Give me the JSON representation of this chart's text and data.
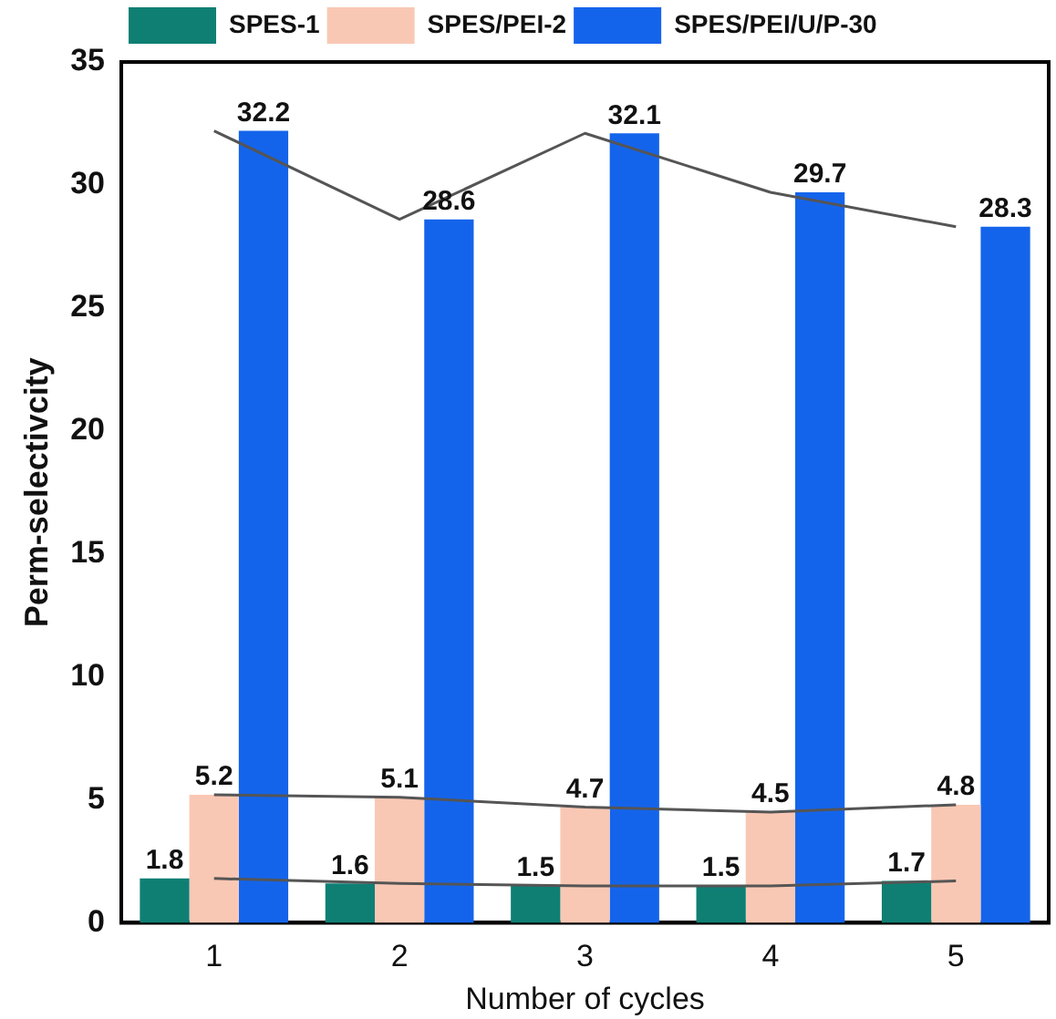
{
  "chart_data": {
    "type": "bar",
    "xlabel": "Number of cycles",
    "ylabel": "Perm-selectivcity",
    "categories": [
      "1",
      "2",
      "3",
      "4",
      "5"
    ],
    "series": [
      {
        "name": "SPES-1",
        "color": "#0f7f74",
        "values": [
          1.8,
          1.6,
          1.5,
          1.5,
          1.7
        ],
        "value_labels": [
          "1.8",
          "1.6",
          "1.5",
          "1.5",
          "1.7"
        ]
      },
      {
        "name": "SPES/PEI-2",
        "color": "#f9c8b4",
        "values": [
          5.2,
          5.1,
          4.7,
          4.5,
          4.8
        ],
        "value_labels": [
          "5.2",
          "5.1",
          "4.7",
          "4.5",
          "4.8"
        ]
      },
      {
        "name": "SPES/PEI/U/P-30",
        "color": "#1464eb",
        "values": [
          32.2,
          28.6,
          32.1,
          29.7,
          28.3
        ],
        "value_labels": [
          "32.2",
          "28.6",
          "32.1",
          "29.7",
          "28.3"
        ]
      },
      {
        "type": "line",
        "color": "#555555",
        "values": [
          1.8,
          1.6,
          1.5,
          1.5,
          1.7
        ]
      },
      {
        "type": "line",
        "color": "#555555",
        "values": [
          5.2,
          5.1,
          4.7,
          4.5,
          4.8
        ]
      },
      {
        "type": "line",
        "color": "#555555",
        "values": [
          32.2,
          28.6,
          32.1,
          29.7,
          28.3
        ]
      }
    ],
    "ylim": [
      0,
      35
    ],
    "yticks": [
      0,
      5,
      10,
      15,
      20,
      25,
      30,
      35
    ],
    "grid": false,
    "legend": "top left",
    "marker": "none",
    "line_style": "solid"
  }
}
